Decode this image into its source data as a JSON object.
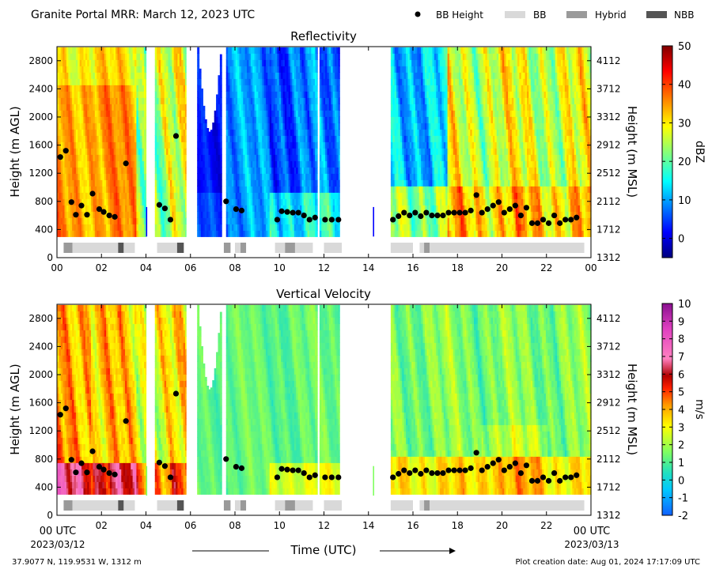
{
  "header": {
    "title": "Granite Portal MRR:  March 12, 2023 UTC",
    "legend": [
      {
        "label": "BB Height",
        "kind": "dot",
        "color": "#000000"
      },
      {
        "label": "BB",
        "kind": "swatch",
        "color": "#d9d9d9"
      },
      {
        "label": "Hybrid",
        "kind": "swatch",
        "color": "#9a9a9a"
      },
      {
        "label": "NBB",
        "kind": "swatch",
        "color": "#555555"
      }
    ]
  },
  "footer": {
    "location": "37.9077 N, 119.9531 W, 1312 m",
    "created": "Plot creation date: Aug 01, 2024 17:17:09 UTC",
    "xlabel": "Time (UTC)",
    "start_label": "00 UTC",
    "start_date": "2023/03/12",
    "end_label": "00 UTC",
    "end_date": "2023/03/13"
  },
  "chart_data": [
    {
      "type": "heatmap",
      "title": "Reflectivity",
      "ylabel": "Height (m AGL)",
      "y2label": "Height (m MSL)",
      "xlim": [
        0,
        24
      ],
      "ylim": [
        0,
        3000
      ],
      "xticks": [
        "00",
        "02",
        "04",
        "06",
        "08",
        "10",
        "12",
        "14",
        "16",
        "18",
        "20",
        "22",
        "00"
      ],
      "yticks": [
        0,
        400,
        800,
        1200,
        1600,
        2000,
        2400,
        2800
      ],
      "y2ticks": [
        1312,
        1712,
        2112,
        2512,
        2912,
        3312,
        3712,
        4112
      ],
      "colorbar": {
        "label": "dBZ",
        "min": -5,
        "max": 50,
        "ticks": [
          0,
          10,
          20,
          30,
          40,
          50
        ],
        "cmap": "jet"
      },
      "data_coverage_hours": [
        [
          0,
          4.0
        ],
        [
          4.4,
          5.8
        ],
        [
          6.3,
          7.4
        ],
        [
          7.6,
          11.7
        ],
        [
          11.8,
          12.7
        ],
        [
          15.0,
          24.0
        ]
      ],
      "sparse_times_hours": [
        4.0,
        14.2
      ],
      "bb_height": {
        "hours": [
          0.15,
          0.4,
          0.65,
          0.85,
          1.1,
          1.35,
          1.6,
          1.9,
          2.1,
          2.35,
          2.6,
          3.1,
          4.6,
          4.85,
          5.1,
          5.35,
          7.6,
          8.05,
          8.3,
          9.9,
          10.1,
          10.35,
          10.6,
          10.85,
          11.1,
          11.35,
          11.6,
          12.05,
          12.35,
          12.65,
          15.1,
          15.35,
          15.6,
          15.85,
          16.1,
          16.35,
          16.6,
          16.85,
          17.1,
          17.35,
          17.6,
          17.85,
          18.1,
          18.35,
          18.6,
          18.85,
          19.1,
          19.35,
          19.6,
          19.85,
          20.1,
          20.35,
          20.6,
          20.85,
          21.1,
          21.35,
          21.6,
          21.85,
          22.1,
          22.35,
          22.6,
          22.85,
          23.1,
          23.35
        ],
        "heights_m": [
          1430,
          1520,
          790,
          610,
          740,
          610,
          910,
          690,
          650,
          600,
          580,
          1340,
          750,
          700,
          540,
          1730,
          800,
          690,
          670,
          540,
          660,
          650,
          640,
          640,
          600,
          540,
          570,
          540,
          540,
          540,
          540,
          590,
          640,
          600,
          640,
          590,
          640,
          600,
          600,
          600,
          640,
          640,
          640,
          640,
          670,
          890,
          640,
          690,
          740,
          790,
          640,
          690,
          740,
          600,
          710,
          490,
          490,
          540,
          490,
          600,
          490,
          540,
          540,
          570
        ]
      },
      "bb_type": [
        {
          "start": 0.3,
          "end": 0.7,
          "type": "Hybrid"
        },
        {
          "start": 0.7,
          "end": 2.75,
          "type": "BB"
        },
        {
          "start": 2.75,
          "end": 3.0,
          "type": "NBB"
        },
        {
          "start": 3.0,
          "end": 3.5,
          "type": "BB"
        },
        {
          "start": 4.5,
          "end": 5.4,
          "type": "BB"
        },
        {
          "start": 5.4,
          "end": 5.7,
          "type": "NBB"
        },
        {
          "start": 7.5,
          "end": 7.8,
          "type": "Hybrid"
        },
        {
          "start": 8.0,
          "end": 8.25,
          "type": "BB"
        },
        {
          "start": 8.25,
          "end": 8.5,
          "type": "Hybrid"
        },
        {
          "start": 9.8,
          "end": 10.25,
          "type": "BB"
        },
        {
          "start": 10.25,
          "end": 10.7,
          "type": "Hybrid"
        },
        {
          "start": 10.7,
          "end": 11.5,
          "type": "BB"
        },
        {
          "start": 12.0,
          "end": 12.8,
          "type": "BB"
        },
        {
          "start": 15.0,
          "end": 16.0,
          "type": "BB"
        },
        {
          "start": 16.3,
          "end": 16.5,
          "type": "BB"
        },
        {
          "start": 16.5,
          "end": 16.75,
          "type": "Hybrid"
        },
        {
          "start": 16.75,
          "end": 23.7,
          "type": "BB"
        }
      ]
    },
    {
      "type": "heatmap",
      "title": "Vertical Velocity",
      "ylabel": "Height (m AGL)",
      "y2label": "Height (m MSL)",
      "xlim": [
        0,
        24
      ],
      "ylim": [
        0,
        3000
      ],
      "xticks": [
        "",
        "02",
        "04",
        "06",
        "08",
        "10",
        "12",
        "14",
        "16",
        "18",
        "20",
        "22",
        ""
      ],
      "yticks": [
        0,
        400,
        800,
        1200,
        1600,
        2000,
        2400,
        2800
      ],
      "y2ticks": [
        1312,
        1712,
        2112,
        2512,
        2912,
        3312,
        3712,
        4112
      ],
      "colorbar": {
        "label": "m/s",
        "min": -2,
        "max": 10,
        "ticks": [
          -2,
          -1,
          0,
          1,
          2,
          3,
          4,
          5,
          6,
          7,
          8,
          9,
          10
        ],
        "cmap": "velocity"
      },
      "data_coverage_hours": [
        [
          0,
          4.0
        ],
        [
          4.4,
          5.8
        ],
        [
          6.3,
          7.4
        ],
        [
          7.6,
          11.7
        ],
        [
          11.8,
          12.7
        ],
        [
          15.0,
          24.0
        ]
      ],
      "sparse_times_hours": [
        4.0,
        14.2
      ],
      "bb_height_ref": "same as Reflectivity",
      "bb_type_ref": "same as Reflectivity"
    }
  ]
}
